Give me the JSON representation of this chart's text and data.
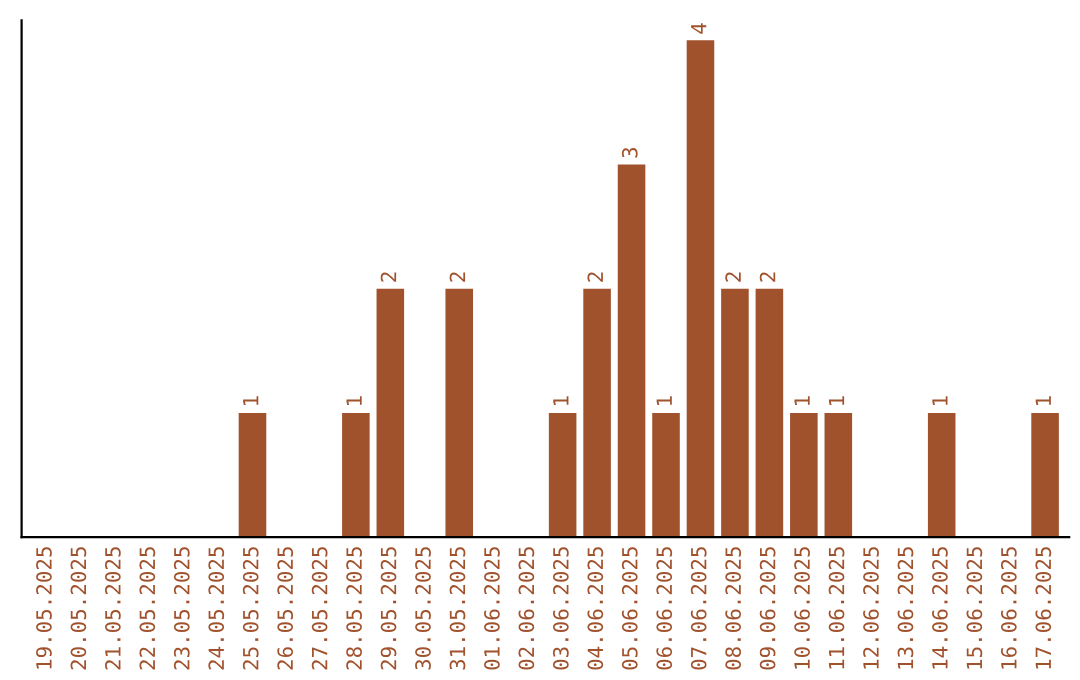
{
  "chart_data": {
    "type": "bar",
    "categories": [
      "19.05.2025",
      "20.05.2025",
      "21.05.2025",
      "22.05.2025",
      "23.05.2025",
      "24.05.2025",
      "25.05.2025",
      "26.05.2025",
      "27.05.2025",
      "28.05.2025",
      "29.05.2025",
      "30.05.2025",
      "31.05.2025",
      "01.06.2025",
      "02.06.2025",
      "03.06.2025",
      "04.06.2025",
      "05.06.2025",
      "06.06.2025",
      "07.06.2025",
      "08.06.2025",
      "09.06.2025",
      "10.06.2025",
      "11.06.2025",
      "12.06.2025",
      "13.06.2025",
      "14.06.2025",
      "15.06.2025",
      "16.06.2025",
      "17.06.2025"
    ],
    "values": [
      0,
      0,
      0,
      0,
      0,
      0,
      1,
      0,
      0,
      1,
      2,
      0,
      2,
      0,
      0,
      1,
      2,
      3,
      1,
      4,
      2,
      2,
      1,
      1,
      0,
      0,
      1,
      0,
      0,
      1
    ],
    "value_labels": [
      null,
      null,
      null,
      null,
      null,
      null,
      "1",
      null,
      null,
      "1",
      "2",
      null,
      "2",
      null,
      null,
      "1",
      "2",
      "3",
      "1",
      "4",
      "2",
      "2",
      "1",
      "1",
      null,
      null,
      "1",
      null,
      null,
      "1"
    ],
    "color": "#a0522d",
    "tick_labels": "x",
    "grid": false,
    "legend": false
  }
}
